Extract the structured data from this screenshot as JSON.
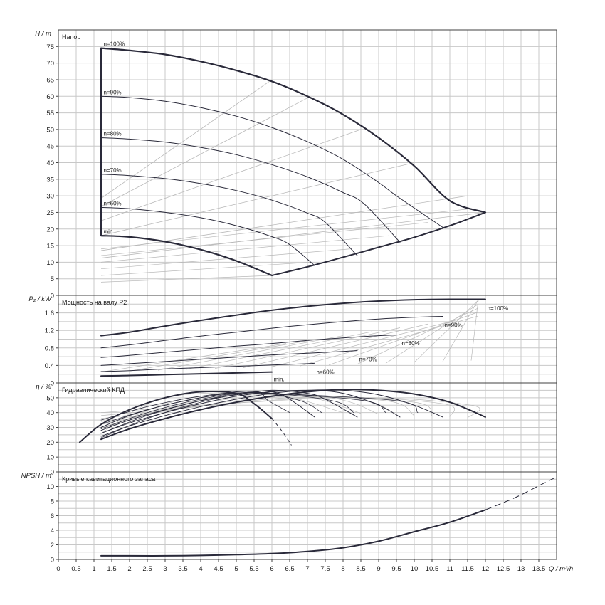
{
  "colors": {
    "background": "#ffffff",
    "grid": "#c8c8c8",
    "frame": "#404040",
    "curve": "#2a2a3a",
    "helper": "#b8b8b8"
  },
  "x_axis": {
    "label": "Q / m³/h",
    "ticks": [
      "0",
      "0.5",
      "1",
      "1.5",
      "2",
      "2.5",
      "3",
      "3.5",
      "4",
      "4.5",
      "5",
      "5.5",
      "6",
      "6.5",
      "7",
      "7.5",
      "8",
      "8.5",
      "9",
      "9.5",
      "10",
      "10.5",
      "11",
      "11.5",
      "12",
      "12.5",
      "13",
      "13.5"
    ]
  },
  "chart_data": [
    {
      "type": "line",
      "title": "Напор",
      "ylabel": "H / m",
      "xlim": [
        0,
        14
      ],
      "ylim": [
        0,
        80
      ],
      "ytick_labels": [
        "0",
        "5",
        "10",
        "15",
        "20",
        "25",
        "30",
        "35",
        "40",
        "45",
        "50",
        "55",
        "60",
        "65",
        "70",
        "75"
      ],
      "yticks": [
        0,
        5,
        10,
        15,
        20,
        25,
        30,
        35,
        40,
        45,
        50,
        55,
        60,
        65,
        70,
        75
      ],
      "series": [
        {
          "name": "n=100%",
          "x": [
            1.2,
            2,
            3,
            4,
            5,
            6,
            7,
            8,
            9,
            10,
            11,
            12
          ],
          "y": [
            74.5,
            73.8,
            72.6,
            70.5,
            67.8,
            64.5,
            60,
            54.5,
            47.5,
            39,
            28.5,
            25
          ]
        },
        {
          "name": "n=90%",
          "x": [
            1.2,
            2,
            3,
            4,
            5,
            6,
            7,
            8,
            9,
            9.5,
            10.8
          ],
          "y": [
            60,
            59.6,
            58.5,
            56.6,
            54,
            50.6,
            46.3,
            41,
            34,
            30,
            20.5
          ]
        },
        {
          "name": "n=80%",
          "x": [
            1.2,
            2,
            3,
            4,
            5,
            6,
            7,
            8,
            8.6,
            9.6
          ],
          "y": [
            47.5,
            47.1,
            46.2,
            44.6,
            42.4,
            39.4,
            35.7,
            31,
            27.5,
            16
          ]
        },
        {
          "name": "n=70%",
          "x": [
            1.2,
            2,
            3,
            4,
            5,
            6,
            7,
            7.5,
            8.4
          ],
          "y": [
            36.5,
            36.1,
            35.2,
            33.7,
            31.6,
            28.7,
            24.8,
            22,
            12
          ]
        },
        {
          "name": "n=60%",
          "x": [
            1.2,
            2,
            3,
            4,
            5,
            6,
            6.5,
            7.2
          ],
          "y": [
            26.5,
            26.1,
            25,
            23.4,
            21,
            17.7,
            15.3,
            9
          ]
        },
        {
          "name": "min.",
          "x": [
            1.2,
            2,
            3,
            4,
            5,
            6
          ],
          "y": [
            18,
            17.6,
            16.2,
            13.8,
            10.4,
            6
          ]
        }
      ],
      "annotations": [
        "n=100%",
        "n=90%",
        "n=80%",
        "n=70%",
        "n=60%",
        "min."
      ]
    },
    {
      "type": "line",
      "title": "Мощность на валу P2",
      "ylabel": "P₂ / kW",
      "xlim": [
        0,
        14
      ],
      "ylim": [
        0,
        2
      ],
      "ytick_labels": [
        "0",
        "0.4",
        "0.8",
        "1.2",
        "1.6"
      ],
      "yticks": [
        0,
        0.2,
        0.4,
        0.6,
        0.8,
        1,
        1.2,
        1.4,
        1.6,
        1.8
      ],
      "series": [
        {
          "name": "n=100%",
          "x": [
            1.2,
            2,
            3,
            4,
            5,
            6,
            7,
            8,
            9,
            10,
            11,
            12
          ],
          "y": [
            1.08,
            1.16,
            1.3,
            1.43,
            1.55,
            1.66,
            1.75,
            1.82,
            1.87,
            1.9,
            1.91,
            1.91
          ]
        },
        {
          "name": "n=90%",
          "x": [
            1.2,
            2,
            3,
            4,
            5,
            6,
            7,
            8,
            9,
            10,
            10.8
          ],
          "y": [
            0.8,
            0.87,
            0.97,
            1.07,
            1.16,
            1.25,
            1.33,
            1.4,
            1.46,
            1.5,
            1.52
          ]
        },
        {
          "name": "n=80%",
          "x": [
            1.2,
            2,
            3,
            4,
            5,
            6,
            7,
            8,
            9,
            9.6
          ],
          "y": [
            0.58,
            0.63,
            0.7,
            0.77,
            0.84,
            0.9,
            0.97,
            1.03,
            1.08,
            1.1
          ]
        },
        {
          "name": "n=70%",
          "x": [
            1.2,
            2,
            3,
            4,
            5,
            6,
            7,
            8,
            8.4
          ],
          "y": [
            0.4,
            0.44,
            0.49,
            0.54,
            0.59,
            0.64,
            0.68,
            0.72,
            0.74
          ]
        },
        {
          "name": "n=60%",
          "x": [
            1.2,
            2,
            3,
            4,
            5,
            6,
            7,
            7.2
          ],
          "y": [
            0.26,
            0.28,
            0.32,
            0.35,
            0.38,
            0.41,
            0.44,
            0.45
          ]
        },
        {
          "name": "min.",
          "x": [
            1.2,
            2,
            3,
            4,
            5,
            6
          ],
          "y": [
            0.16,
            0.17,
            0.19,
            0.21,
            0.23,
            0.25
          ]
        }
      ],
      "annotations": [
        "n=100%",
        "n=90%",
        "n=80%",
        "n=70%",
        "n=60%",
        "min."
      ]
    },
    {
      "type": "line",
      "title": "Гидравлический КПД",
      "ylabel": "η / %",
      "xlim": [
        0,
        14
      ],
      "ylim": [
        0,
        60
      ],
      "ytick_labels": [
        "0",
        "10",
        "20",
        "30",
        "40",
        "50"
      ],
      "yticks": [
        0,
        5,
        10,
        15,
        20,
        25,
        30,
        35,
        40,
        45,
        50,
        55
      ],
      "series": [
        {
          "name": "n=100%",
          "x": [
            1.2,
            2,
            3,
            4,
            5,
            6,
            7,
            8,
            9,
            10,
            11,
            12
          ],
          "y": [
            22,
            29,
            36,
            42,
            47,
            51,
            54,
            55.5,
            55,
            52.5,
            47,
            37
          ]
        },
        {
          "name": "n=90%",
          "x": [
            1.2,
            2,
            3,
            4,
            5,
            6,
            7,
            8,
            9,
            10,
            10.8
          ],
          "y": [
            24,
            31,
            38,
            44,
            49,
            53,
            55,
            55,
            52,
            45,
            37
          ]
        },
        {
          "name": "n=80%",
          "x": [
            1.2,
            2,
            3,
            4,
            5,
            6,
            7,
            8,
            9,
            9.6
          ],
          "y": [
            26,
            33,
            40,
            46,
            51,
            54,
            55,
            53,
            45,
            37
          ]
        },
        {
          "name": "n=70%",
          "x": [
            1.2,
            2,
            3,
            4,
            5,
            6,
            7,
            7.5,
            8.4
          ],
          "y": [
            28,
            35,
            42,
            48,
            52,
            55,
            53,
            49,
            37
          ]
        },
        {
          "name": "n=60%",
          "x": [
            1.2,
            2,
            3,
            4,
            5,
            6,
            6.5,
            7.2
          ],
          "y": [
            30,
            38,
            45,
            50,
            54,
            54,
            49,
            37
          ]
        },
        {
          "name": "min.",
          "x": [
            0.6,
            1.2,
            2,
            3,
            4,
            5,
            5.5,
            6
          ],
          "y": [
            20,
            32,
            42,
            50,
            54,
            53,
            46,
            36
          ]
        }
      ]
    },
    {
      "type": "line",
      "title": "Кривые кавитационного запаса",
      "ylabel": "NPSH / m",
      "xlim": [
        0,
        14
      ],
      "ylim": [
        0,
        12
      ],
      "ytick_labels": [
        "0",
        "2",
        "4",
        "6",
        "8",
        "10"
      ],
      "yticks": [
        0,
        1,
        2,
        3,
        4,
        5,
        6,
        7,
        8,
        9,
        10,
        11
      ],
      "series": [
        {
          "name": "NPSH",
          "x": [
            1.2,
            2,
            3,
            4,
            5,
            6,
            7,
            8,
            9,
            10,
            11,
            12
          ],
          "y": [
            0.5,
            0.5,
            0.5,
            0.55,
            0.65,
            0.8,
            1.1,
            1.6,
            2.5,
            3.8,
            5.1,
            6.8
          ]
        }
      ]
    }
  ]
}
